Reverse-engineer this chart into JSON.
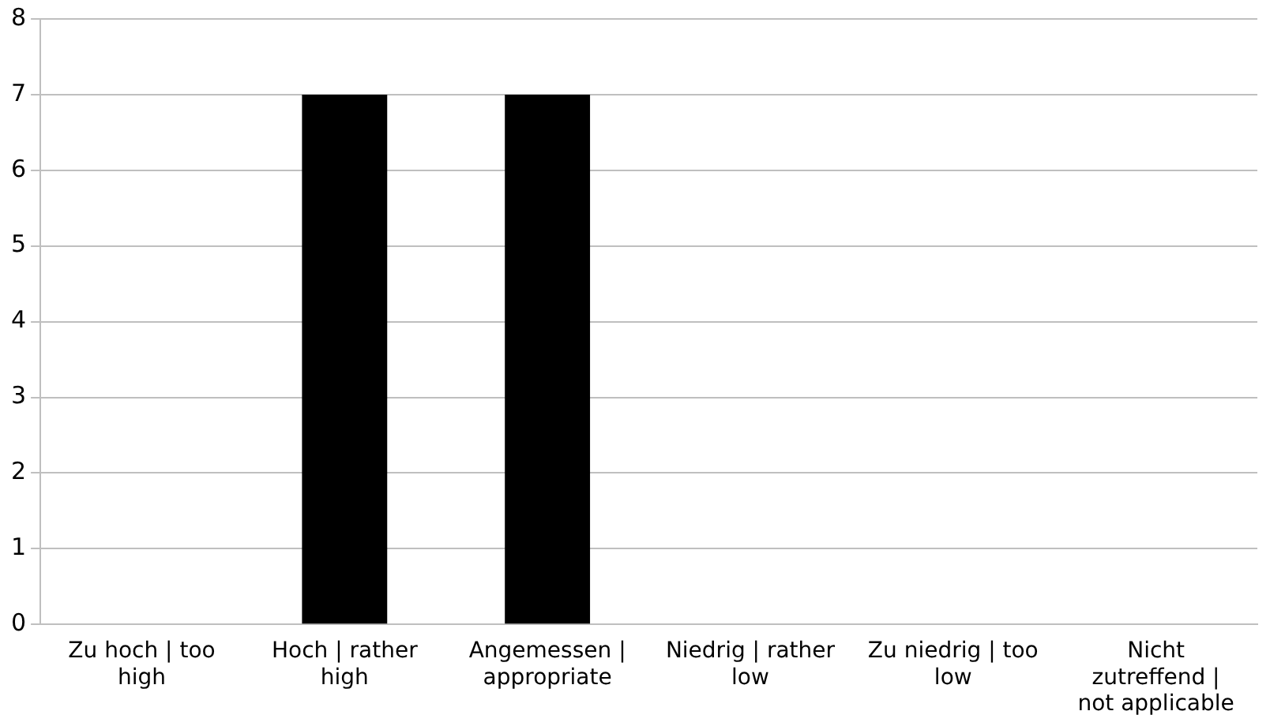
{
  "chart_data": {
    "type": "bar",
    "categories": [
      "Zu hoch | too high",
      "Hoch | rather high",
      "Angemessen | appropriate",
      "Niedrig | rather low",
      "Zu niedrig | too low",
      "Nicht zutreffend | not applicable"
    ],
    "values": [
      0,
      7,
      7,
      0,
      0,
      0
    ],
    "color": "#000000",
    "ylim": [
      0,
      8
    ],
    "yticks": [
      0,
      1,
      2,
      3,
      4,
      5,
      6,
      7,
      8
    ],
    "grid": "y",
    "legend": false
  }
}
